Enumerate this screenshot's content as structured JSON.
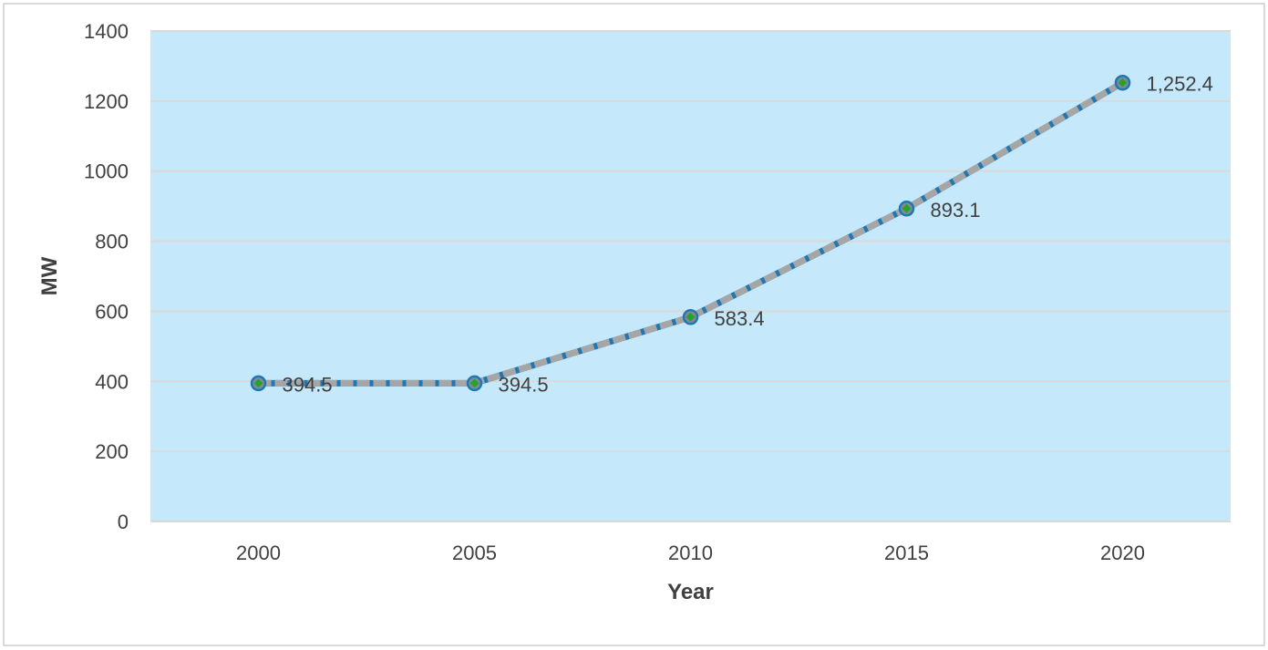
{
  "chart_data": {
    "type": "line",
    "title": "",
    "xlabel": "Year",
    "ylabel": "MW",
    "categories": [
      "2000",
      "2005",
      "2010",
      "2015",
      "2020"
    ],
    "series": [
      {
        "values": [
          394.5,
          394.5,
          583.4,
          893.1,
          1252.4
        ],
        "data_labels": [
          "394.5",
          "394.5",
          "583.4",
          "893.1",
          "1,252.4"
        ],
        "line_color": "#1f77b4",
        "dash_color": "#a6a6a6",
        "marker_color": "#2ca02c"
      }
    ],
    "ylim": [
      0,
      1400
    ],
    "yticks": [
      "0",
      "200",
      "400",
      "600",
      "800",
      "1000",
      "1200",
      "1400"
    ],
    "grid": true,
    "legend": "none",
    "plot_background": "#c5e9fb",
    "grid_color": "#d9d9d9"
  }
}
